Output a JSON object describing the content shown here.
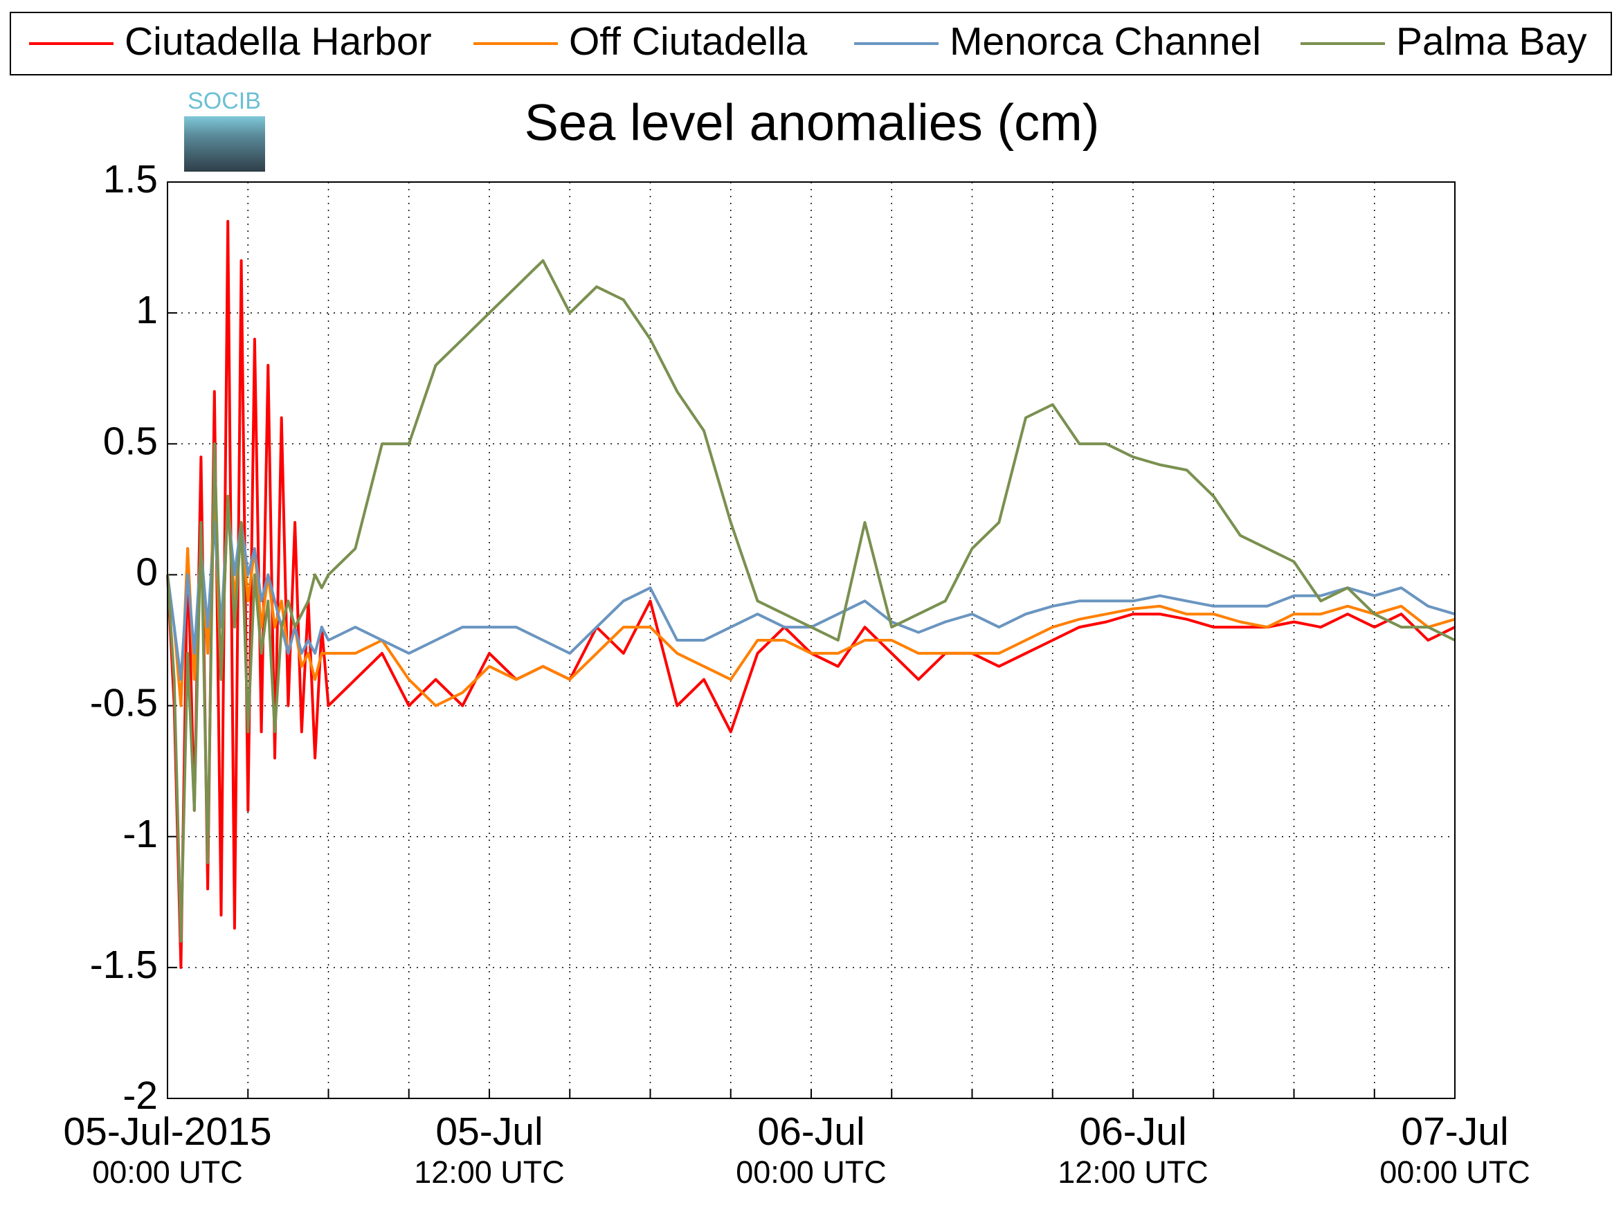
{
  "chart_data": {
    "type": "line",
    "title": "Sea level anomalies (cm)",
    "logo": "SOCIB",
    "x": [
      "2015-07-05 00:00",
      "2015-07-05 00:15",
      "2015-07-05 00:30",
      "2015-07-05 00:45",
      "2015-07-05 01:00",
      "2015-07-05 01:15",
      "2015-07-05 01:30",
      "2015-07-05 01:45",
      "2015-07-05 02:00",
      "2015-07-05 02:15",
      "2015-07-05 02:30",
      "2015-07-05 02:45",
      "2015-07-05 03:00",
      "2015-07-05 03:15",
      "2015-07-05 03:30",
      "2015-07-05 03:45",
      "2015-07-05 04:00",
      "2015-07-05 04:15",
      "2015-07-05 04:30",
      "2015-07-05 04:45",
      "2015-07-05 05:00",
      "2015-07-05 05:15",
      "2015-07-05 05:30",
      "2015-07-05 05:45",
      "2015-07-05 06:00",
      "2015-07-05 07:00",
      "2015-07-05 08:00",
      "2015-07-05 09:00",
      "2015-07-05 10:00",
      "2015-07-05 11:00",
      "2015-07-05 12:00",
      "2015-07-05 13:00",
      "2015-07-05 14:00",
      "2015-07-05 15:00",
      "2015-07-05 16:00",
      "2015-07-05 17:00",
      "2015-07-05 18:00",
      "2015-07-05 19:00",
      "2015-07-05 20:00",
      "2015-07-05 21:00",
      "2015-07-05 22:00",
      "2015-07-05 23:00",
      "2015-07-06 00:00",
      "2015-07-06 01:00",
      "2015-07-06 02:00",
      "2015-07-06 03:00",
      "2015-07-06 04:00",
      "2015-07-06 05:00",
      "2015-07-06 06:00",
      "2015-07-06 07:00",
      "2015-07-06 08:00",
      "2015-07-06 09:00",
      "2015-07-06 10:00",
      "2015-07-06 11:00",
      "2015-07-06 12:00",
      "2015-07-06 13:00",
      "2015-07-06 14:00",
      "2015-07-06 15:00",
      "2015-07-06 16:00",
      "2015-07-06 17:00",
      "2015-07-06 18:00",
      "2015-07-06 19:00",
      "2015-07-06 20:00",
      "2015-07-06 21:00",
      "2015-07-06 22:00",
      "2015-07-06 23:00",
      "2015-07-07 00:00"
    ],
    "series": [
      {
        "name": "Ciutadella Harbor",
        "color": "#ff0000",
        "values": [
          0,
          -0.5,
          -1.5,
          0.1,
          -0.9,
          0.45,
          -1.2,
          0.7,
          -1.3,
          1.35,
          -1.35,
          1.2,
          -0.9,
          0.9,
          -0.6,
          0.8,
          -0.7,
          0.6,
          -0.5,
          0.2,
          -0.6,
          -0.1,
          -0.7,
          -0.2,
          -0.5,
          -0.4,
          -0.3,
          -0.5,
          -0.4,
          -0.5,
          -0.3,
          -0.4,
          -0.35,
          -0.4,
          -0.2,
          -0.3,
          -0.1,
          -0.5,
          -0.4,
          -0.6,
          -0.3,
          -0.2,
          -0.3,
          -0.35,
          -0.2,
          -0.3,
          -0.4,
          -0.3,
          -0.3,
          -0.35,
          -0.3,
          -0.25,
          -0.2,
          -0.18,
          -0.15,
          -0.15,
          -0.17,
          -0.2,
          -0.2,
          -0.2,
          -0.18,
          -0.2,
          -0.15,
          -0.2,
          -0.15,
          -0.25,
          -0.2
        ]
      },
      {
        "name": "Off Ciutadella",
        "color": "#ff8000",
        "values": [
          0,
          -0.2,
          -0.5,
          0.1,
          -0.4,
          0.1,
          -0.3,
          0.3,
          -0.4,
          0.3,
          -0.1,
          0.2,
          -0.1,
          0.1,
          -0.2,
          0,
          -0.2,
          -0.1,
          -0.3,
          -0.2,
          -0.35,
          -0.3,
          -0.4,
          -0.3,
          -0.3,
          -0.3,
          -0.25,
          -0.4,
          -0.5,
          -0.45,
          -0.35,
          -0.4,
          -0.35,
          -0.4,
          -0.3,
          -0.2,
          -0.2,
          -0.3,
          -0.35,
          -0.4,
          -0.25,
          -0.25,
          -0.3,
          -0.3,
          -0.25,
          -0.25,
          -0.3,
          -0.3,
          -0.3,
          -0.3,
          -0.25,
          -0.2,
          -0.17,
          -0.15,
          -0.13,
          -0.12,
          -0.15,
          -0.15,
          -0.18,
          -0.2,
          -0.15,
          -0.15,
          -0.12,
          -0.15,
          -0.12,
          -0.2,
          -0.17
        ]
      },
      {
        "name": "Menorca Channel",
        "color": "#6a95c0",
        "values": [
          0,
          -0.2,
          -0.4,
          0,
          -0.3,
          0.1,
          -0.2,
          0.2,
          -0.2,
          0.25,
          0,
          0.2,
          0,
          0.1,
          -0.1,
          0,
          -0.1,
          -0.2,
          -0.3,
          -0.2,
          -0.3,
          -0.25,
          -0.3,
          -0.2,
          -0.25,
          -0.2,
          -0.25,
          -0.3,
          -0.25,
          -0.2,
          -0.2,
          -0.2,
          -0.25,
          -0.3,
          -0.2,
          -0.1,
          -0.05,
          -0.25,
          -0.25,
          -0.2,
          -0.15,
          -0.2,
          -0.2,
          -0.15,
          -0.1,
          -0.18,
          -0.22,
          -0.18,
          -0.15,
          -0.2,
          -0.15,
          -0.12,
          -0.1,
          -0.1,
          -0.1,
          -0.08,
          -0.1,
          -0.12,
          -0.12,
          -0.12,
          -0.08,
          -0.08,
          -0.05,
          -0.08,
          -0.05,
          -0.12,
          -0.15
        ]
      },
      {
        "name": "Palma Bay",
        "color": "#7a9050",
        "values": [
          0,
          -0.4,
          -1.4,
          -0.3,
          -0.9,
          0.2,
          -1.1,
          0.5,
          -0.4,
          0.3,
          -0.2,
          0.2,
          -0.6,
          0,
          -0.3,
          -0.1,
          -0.6,
          -0.2,
          -0.1,
          -0.2,
          -0.15,
          -0.1,
          0,
          -0.05,
          0,
          0.1,
          0.5,
          0.5,
          0.8,
          0.9,
          1.0,
          1.1,
          1.2,
          1.0,
          1.1,
          1.05,
          0.9,
          0.7,
          0.55,
          0.2,
          -0.1,
          -0.15,
          -0.2,
          -0.25,
          0.2,
          -0.2,
          -0.15,
          -0.1,
          0.1,
          0.2,
          0.6,
          0.65,
          0.5,
          0.5,
          0.45,
          0.42,
          0.4,
          0.3,
          0.15,
          0.1,
          0.05,
          -0.1,
          -0.05,
          -0.15,
          -0.2,
          -0.2,
          -0.25
        ]
      }
    ],
    "xlim": [
      "2015-07-05 00:00",
      "2015-07-07 00:00"
    ],
    "xticks": [
      {
        "value": "2015-07-05 00:00",
        "label": [
          "05-Jul-2015",
          "00:00 UTC"
        ]
      },
      {
        "value": "2015-07-05 03:00"
      },
      {
        "value": "2015-07-05 06:00"
      },
      {
        "value": "2015-07-05 09:00"
      },
      {
        "value": "2015-07-05 12:00",
        "label": [
          "05-Jul",
          "12:00 UTC"
        ]
      },
      {
        "value": "2015-07-05 15:00"
      },
      {
        "value": "2015-07-05 18:00"
      },
      {
        "value": "2015-07-05 21:00"
      },
      {
        "value": "2015-07-06 00:00",
        "label": [
          "06-Jul",
          "00:00 UTC"
        ]
      },
      {
        "value": "2015-07-06 03:00"
      },
      {
        "value": "2015-07-06 06:00"
      },
      {
        "value": "2015-07-06 09:00"
      },
      {
        "value": "2015-07-06 12:00",
        "label": [
          "06-Jul",
          "12:00 UTC"
        ]
      },
      {
        "value": "2015-07-06 15:00"
      },
      {
        "value": "2015-07-06 18:00"
      },
      {
        "value": "2015-07-06 21:00"
      },
      {
        "value": "2015-07-07 00:00",
        "label": [
          "07-Jul",
          "00:00 UTC"
        ]
      }
    ],
    "ylim": [
      -2,
      1.5
    ],
    "yticks": [
      -2,
      -1.5,
      -1,
      -0.5,
      0,
      0.5,
      1,
      1.5
    ],
    "grid": true,
    "legend": "top"
  }
}
